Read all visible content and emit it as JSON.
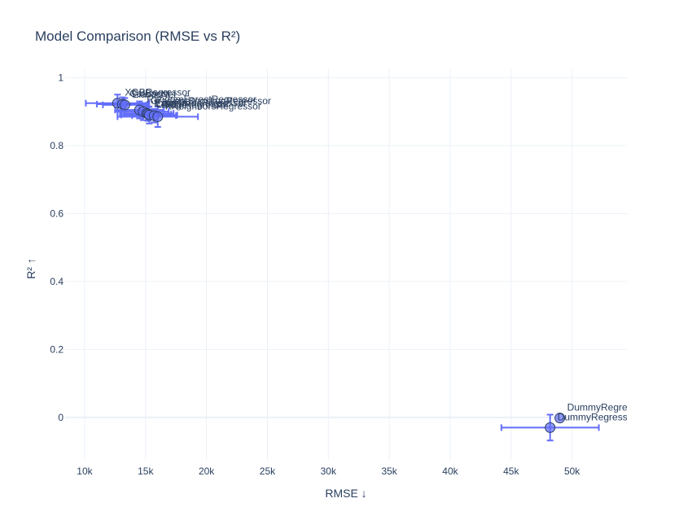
{
  "chart_data": {
    "type": "scatter",
    "title": "Model Comparison (RMSE vs R²)",
    "xlabel": "RMSE ↓",
    "ylabel": "R² ↑",
    "xlim": [
      8400,
      54500
    ],
    "ylim": [
      -0.125,
      1.025
    ],
    "x_ticks": [
      10000,
      15000,
      20000,
      25000,
      30000,
      35000,
      40000,
      45000,
      50000
    ],
    "x_tick_labels": [
      "10k",
      "15k",
      "20k",
      "25k",
      "30k",
      "35k",
      "40k",
      "45k",
      "50k"
    ],
    "y_ticks": [
      0,
      0.2,
      0.4,
      0.6,
      0.8,
      1
    ],
    "y_tick_labels": [
      "0",
      "0.2",
      "0.4",
      "0.6",
      "0.8",
      "1"
    ],
    "grid": true,
    "marker_color": "#636efa",
    "points": [
      {
        "label": "XGBRegressor",
        "x": 12700,
        "y": 0.925,
        "x_err": 2600,
        "y_err": 0.025
      },
      {
        "label": "CatBoost",
        "x": 13100,
        "y": 0.922,
        "x_err": 2100,
        "y_err": 0.02
      },
      {
        "label": "ElasticNet",
        "x": 13300,
        "y": 0.92,
        "x_err": 1800,
        "y_err": 0.02
      },
      {
        "label": "RandomForestRegressor",
        "x": 14500,
        "y": 0.905,
        "x_err": 2000,
        "y_err": 0.025
      },
      {
        "label": "GradientBoostingRegressor",
        "x": 14800,
        "y": 0.9,
        "x_err": 2100,
        "y_err": 0.025
      },
      {
        "label": "ExtraTreesRegressor",
        "x": 15100,
        "y": 0.895,
        "x_err": 2200,
        "y_err": 0.02
      },
      {
        "label": "Lasso",
        "x": 15200,
        "y": 0.893,
        "x_err": 1900,
        "y_err": 0.02
      },
      {
        "label": "LGBMRegressor",
        "x": 15300,
        "y": 0.89,
        "x_err": 2300,
        "y_err": 0.025
      },
      {
        "label": "Ridge",
        "x": 15700,
        "y": 0.888,
        "x_err": 1800,
        "y_err": 0.02
      },
      {
        "label": "KNeighborsRegressor",
        "x": 16000,
        "y": 0.885,
        "x_err": 3300,
        "y_err": 0.03
      },
      {
        "label": "DummyRegressor",
        "x": 49000,
        "y": -0.002,
        "x_err": 0,
        "y_err": 0
      },
      {
        "label": "DummyRegressor",
        "x": 48200,
        "y": -0.03,
        "x_err": 4000,
        "y_err": 0.038
      }
    ]
  }
}
